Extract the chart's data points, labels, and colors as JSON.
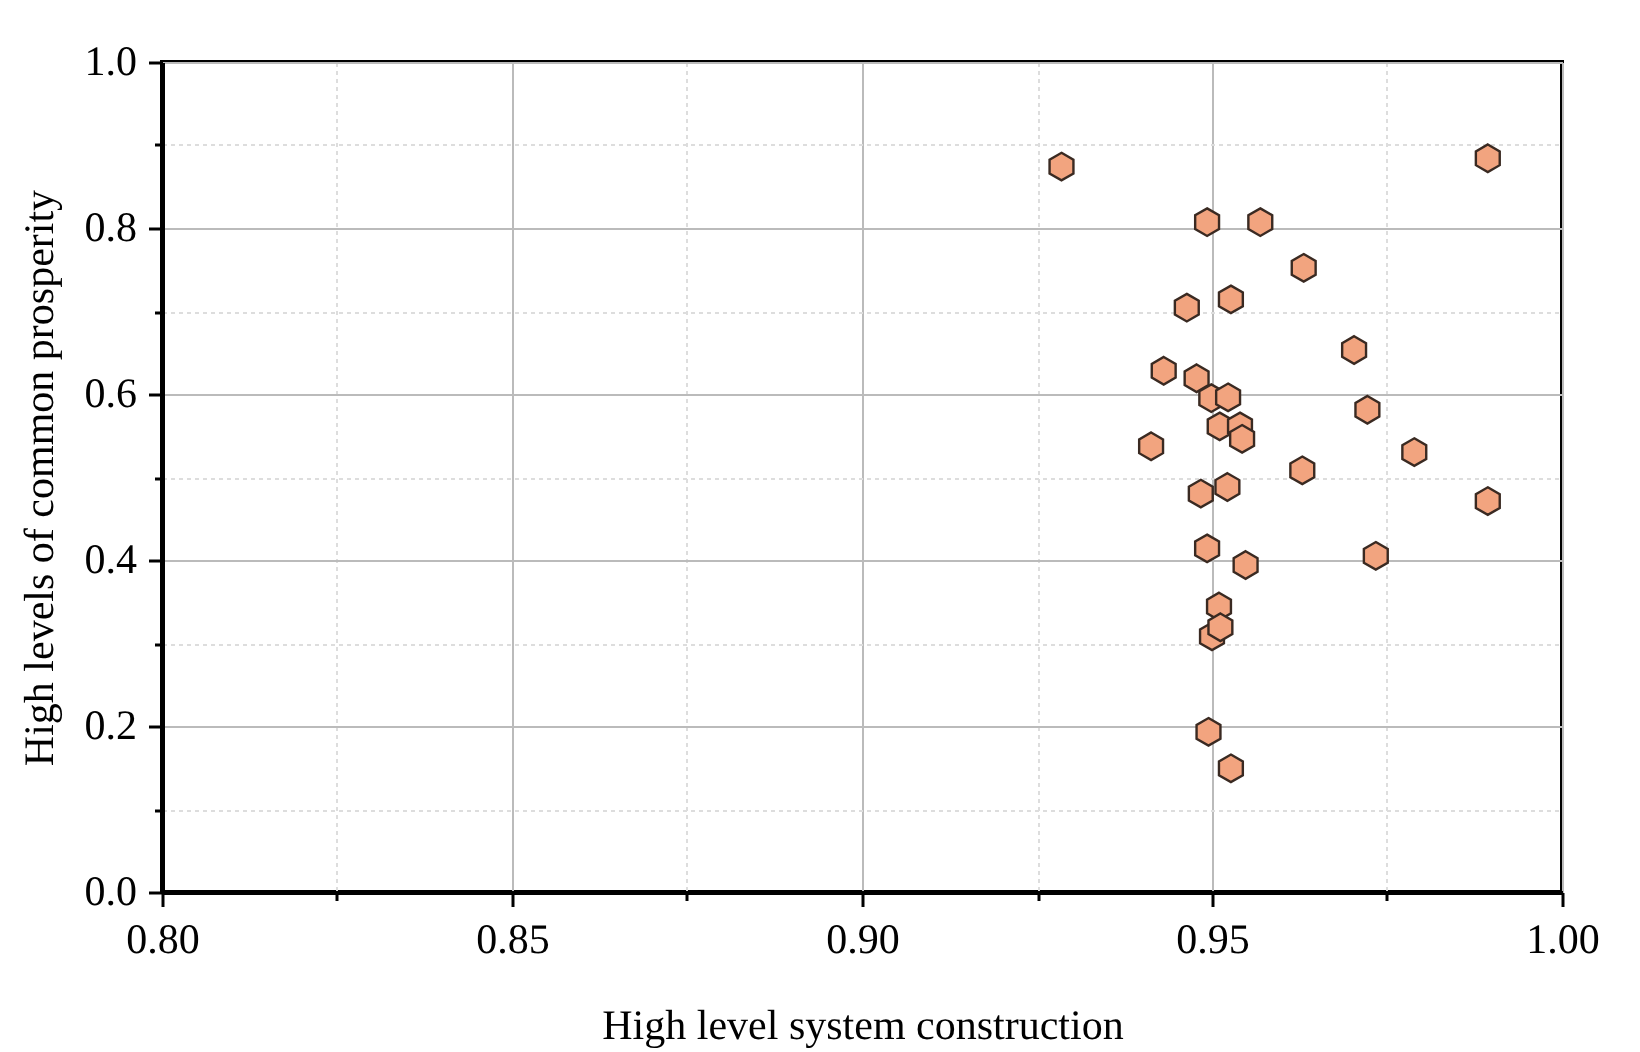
{
  "chart_data": {
    "type": "scatter",
    "xlabel": "High level system construction",
    "ylabel": "High levels of common prosperity",
    "xlim": [
      0.8,
      1.0
    ],
    "ylim": [
      0.0,
      1.0
    ],
    "xticks": [
      {
        "value": 0.8,
        "label": "0.80"
      },
      {
        "value": 0.825,
        "label": null
      },
      {
        "value": 0.85,
        "label": "0.85"
      },
      {
        "value": 0.875,
        "label": null
      },
      {
        "value": 0.9,
        "label": "0.90"
      },
      {
        "value": 0.925,
        "label": null
      },
      {
        "value": 0.95,
        "label": "0.95"
      },
      {
        "value": 0.975,
        "label": null
      },
      {
        "value": 1.0,
        "label": "1.00"
      }
    ],
    "yticks": [
      {
        "value": 0,
        "label": "0.0"
      },
      {
        "value": 0.1,
        "label": null
      },
      {
        "value": 0.2,
        "label": "0.2"
      },
      {
        "value": 0.3,
        "label": null
      },
      {
        "value": 0.4,
        "label": "0.4"
      },
      {
        "value": 0.5,
        "label": null
      },
      {
        "value": 0.6,
        "label": "0.6"
      },
      {
        "value": 0.7,
        "label": null
      },
      {
        "value": 0.8,
        "label": "0.8"
      },
      {
        "value": 0.9,
        "label": null
      },
      {
        "value": 1.0,
        "label": "1.0"
      }
    ],
    "grid": true,
    "series": [
      {
        "color": "#f2a47f",
        "x": [
          0.9285,
          0.9894,
          0.9493,
          0.9569,
          0.9631,
          0.9464,
          0.9527,
          0.9703,
          0.9431,
          0.9478,
          0.9499,
          0.9523,
          0.9722,
          0.9511,
          0.954,
          0.9543,
          0.9413,
          0.9789,
          0.9629,
          0.9522,
          0.9484,
          0.9894,
          0.9493,
          0.9734,
          0.9548,
          0.951,
          0.95,
          0.9512,
          0.9495,
          0.9527
        ],
        "values": [
          0.874,
          0.884,
          0.807,
          0.807,
          0.752,
          0.704,
          0.714,
          0.653,
          0.628,
          0.619,
          0.595,
          0.596,
          0.581,
          0.561,
          0.561,
          0.546,
          0.537,
          0.53,
          0.508,
          0.488,
          0.48,
          0.471,
          0.414,
          0.405,
          0.394,
          0.344,
          0.308,
          0.319,
          0.193,
          0.149
        ]
      }
    ]
  }
}
